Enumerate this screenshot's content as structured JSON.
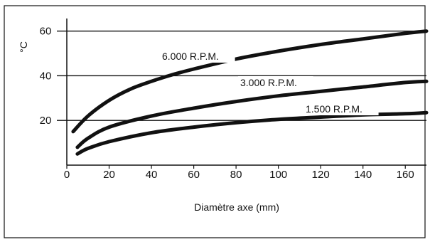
{
  "chart_data": {
    "type": "line",
    "xlabel": "Diamètre axe (mm)",
    "ylabel": "°C",
    "xlim": [
      0,
      170
    ],
    "ylim": [
      0,
      65
    ],
    "xticks": [
      "0",
      "20",
      "40",
      "60",
      "80",
      "100",
      "120",
      "140",
      "160"
    ],
    "yticks": [
      "20",
      "40",
      "60"
    ],
    "grid": "horizontal",
    "series": [
      {
        "name": "6.000 R.P.M.",
        "x": [
          3,
          10,
          20,
          30,
          40,
          50,
          60,
          80,
          100,
          120,
          140,
          160,
          170
        ],
        "y": [
          15,
          22,
          29,
          34,
          37.5,
          40.5,
          43,
          47.5,
          51,
          54,
          56.5,
          59,
          60
        ]
      },
      {
        "name": "3.000 R.P.M.",
        "x": [
          5,
          10,
          20,
          40,
          60,
          80,
          100,
          120,
          140,
          160,
          170
        ],
        "y": [
          8,
          12,
          17,
          22,
          25.5,
          28.5,
          31,
          33,
          35,
          37,
          37.5
        ]
      },
      {
        "name": "1.500 R.P.M.",
        "x": [
          5,
          10,
          20,
          40,
          60,
          80,
          100,
          120,
          140,
          160,
          170
        ],
        "y": [
          5,
          7.5,
          10.5,
          14.5,
          17,
          19,
          20.5,
          21.5,
          22.5,
          23,
          23.5
        ]
      }
    ]
  }
}
